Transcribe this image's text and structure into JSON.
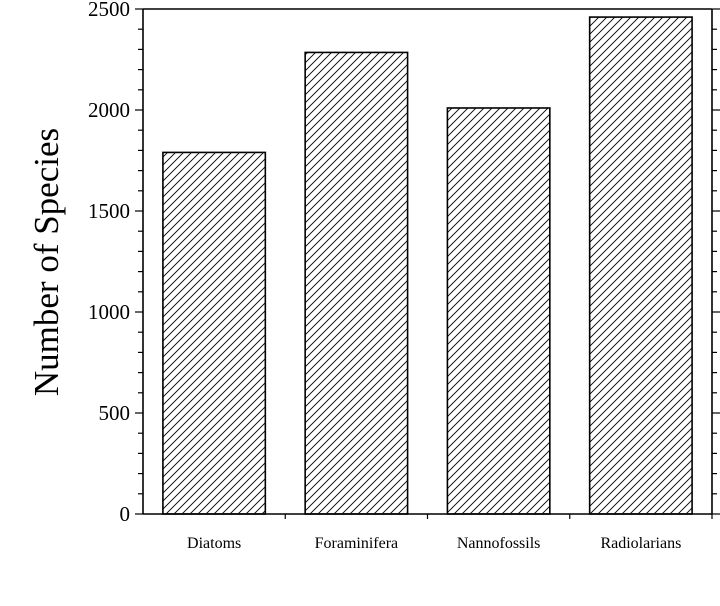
{
  "chart_data": {
    "type": "bar",
    "categories": [
      "Diatoms",
      "Foraminifera",
      "Nannofossils",
      "Radiolarians"
    ],
    "values": [
      1790,
      2285,
      2010,
      2460
    ],
    "title": "",
    "xlabel": "",
    "ylabel": "Number of Species",
    "ylim": [
      0,
      2500
    ],
    "yticks": [
      0,
      500,
      1000,
      1500,
      2000,
      2500
    ],
    "y_minor_step": 100,
    "grid": false,
    "legend": "none",
    "bar_fill": "diagonal-hatch",
    "colors": {
      "bar_stroke": "#000000",
      "hatch": "#000000",
      "background": "#ffffff",
      "axis": "#000000"
    }
  }
}
